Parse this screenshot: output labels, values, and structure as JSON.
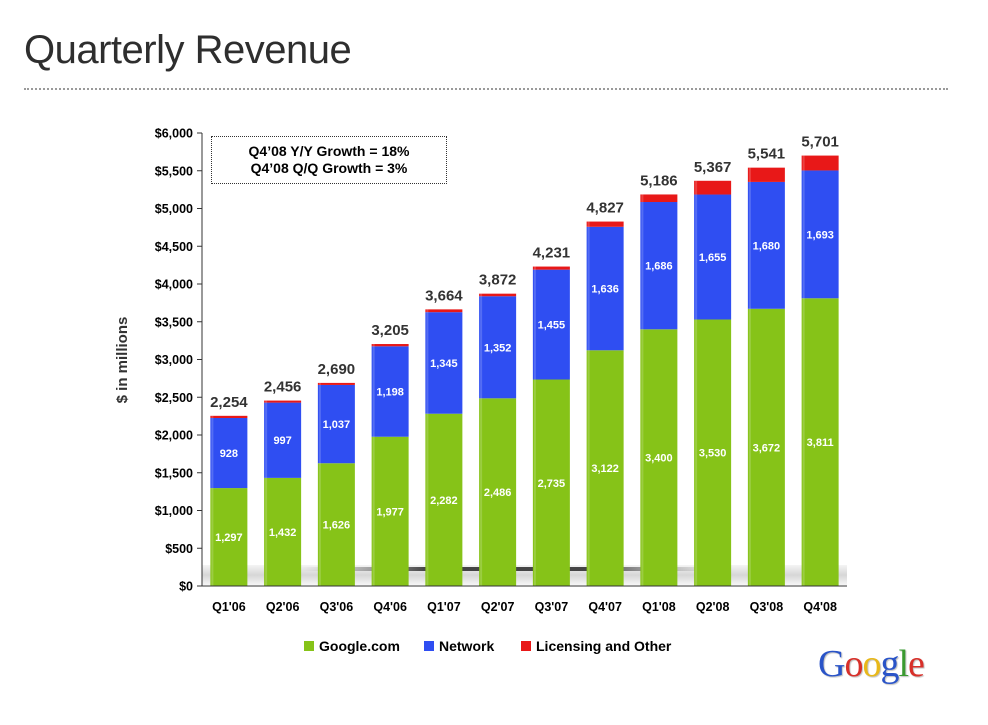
{
  "slide": {
    "title": "Quarterly Revenue",
    "growth_line1": "Q4’08 Y/Y Growth = 18%",
    "growth_line2": "Q4’08 Q/Q Growth = 3%",
    "logo_text": "Google"
  },
  "colors": {
    "google_com": "#86c318",
    "network": "#2f4ef2",
    "licensing": "#e81818",
    "logo": [
      "#2a54c8",
      "#d8302a",
      "#e8b81a",
      "#2a54c8",
      "#3a9a30",
      "#d8302a"
    ]
  },
  "chart_data": {
    "type": "bar",
    "stacked": true,
    "ylabel": "$ in millions",
    "xlabel": "",
    "ylim": [
      0,
      6000
    ],
    "yticks": [
      0,
      500,
      1000,
      1500,
      2000,
      2500,
      3000,
      3500,
      4000,
      4500,
      5000,
      5500,
      6000
    ],
    "ytick_labels": [
      "$0",
      "$500",
      "$1,000",
      "$1,500",
      "$2,000",
      "$2,500",
      "$3,000",
      "$3,500",
      "$4,000",
      "$4,500",
      "$5,000",
      "$5,500",
      "$6,000"
    ],
    "categories": [
      "Q1'06",
      "Q2'06",
      "Q3'06",
      "Q4'06",
      "Q1'07",
      "Q2'07",
      "Q3'07",
      "Q4'07",
      "Q1'08",
      "Q2'08",
      "Q3'08",
      "Q4'08"
    ],
    "series": [
      {
        "name": "Google.com",
        "values": [
          1297,
          1432,
          1626,
          1977,
          2282,
          2486,
          2735,
          3122,
          3400,
          3530,
          3672,
          3811
        ],
        "labels": [
          "1,297",
          "1,432",
          "1,626",
          "1,977",
          "2,282",
          "2,486",
          "2,735",
          "3,122",
          "3,400",
          "3,530",
          "3,672",
          "3,811"
        ]
      },
      {
        "name": "Network",
        "values": [
          928,
          997,
          1037,
          1198,
          1345,
          1352,
          1455,
          1636,
          1686,
          1655,
          1680,
          1693
        ],
        "labels": [
          "928",
          "997",
          "1,037",
          "1,198",
          "1,345",
          "1,352",
          "1,455",
          "1,636",
          "1,686",
          "1,655",
          "1,680",
          "1,693"
        ]
      },
      {
        "name": "Licensing and Other",
        "values": [
          29,
          27,
          27,
          30,
          37,
          34,
          41,
          69,
          100,
          182,
          189,
          197
        ]
      }
    ],
    "totals": [
      2254,
      2456,
      2690,
      3205,
      3664,
      3872,
      4231,
      4827,
      5186,
      5367,
      5541,
      5701
    ],
    "total_labels": [
      "2,254",
      "2,456",
      "2,690",
      "3,205",
      "3,664",
      "3,872",
      "4,231",
      "4,827",
      "5,186",
      "5,367",
      "5,541",
      "5,701"
    ],
    "legend_position": "bottom",
    "grid": false
  }
}
